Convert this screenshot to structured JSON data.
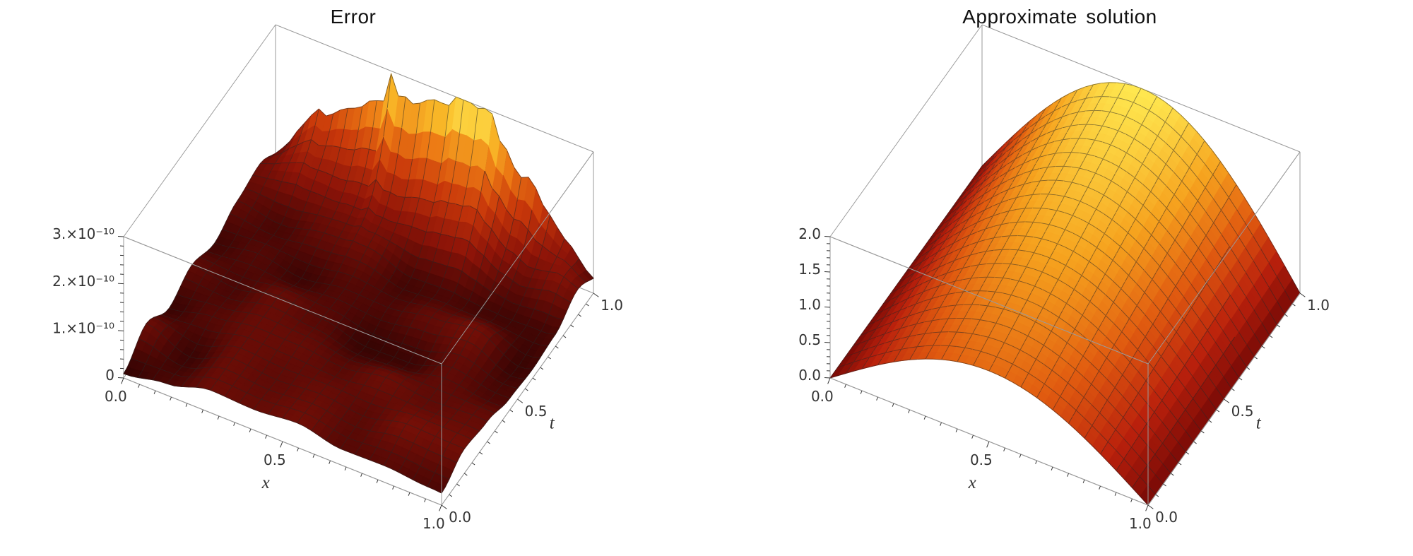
{
  "page": {
    "background": "#ffffff"
  },
  "chart_data": [
    {
      "type": "surface3d",
      "title": "Error",
      "xlabel": "x",
      "ylabel": "t",
      "x_range": [
        0,
        1
      ],
      "t_range": [
        0,
        1
      ],
      "z_range": [
        0,
        3e-10
      ],
      "x_ticks": [
        {
          "v": 0.0,
          "label": "0.0"
        },
        {
          "v": 0.5,
          "label": "0.5"
        },
        {
          "v": 1.0,
          "label": "1.0"
        }
      ],
      "t_ticks": [
        {
          "v": 0.0,
          "label": "0.0"
        },
        {
          "v": 0.5,
          "label": "0.5"
        },
        {
          "v": 1.0,
          "label": "1.0"
        }
      ],
      "z_ticks": [
        {
          "v": 0,
          "label": "0"
        },
        {
          "v": 1e-10,
          "label": "1.×10⁻¹⁰"
        },
        {
          "v": 2e-10,
          "label": "2.×10⁻¹⁰"
        },
        {
          "v": 3e-10,
          "label": "3.×10⁻¹⁰"
        }
      ],
      "x_minor_step": 0.05,
      "t_minor_step": 0.05,
      "z_minor_step": 2e-11,
      "grid": {
        "nx": 44,
        "nt": 40,
        "mesh_stride_x": 2,
        "mesh_stride_t": 2
      },
      "surface": {
        "z_formula": "zmax*(Math.pow(t,10)*Math.sin(Math.PI*x)*(0.70+0.30*stripe(x)) + 0.03 + 0.16*noise(x,t))",
        "description": "Pointwise absolute error of the numerical solution on [0,1]x[0,1]; near zero (noise floor about 1e-11) over most of the domain, rising in streaks to about 3e-10 along t=1 with a sin(pi x) profile."
      },
      "sample_points": {
        "note": "z rows indexed by t, columns by x (values estimated from plot)",
        "x": [
          0,
          0.25,
          0.5,
          0.75,
          1
        ],
        "t": [
          0,
          0.25,
          0.5,
          0.75,
          1
        ],
        "z_rows_by_t": [
          [
            0,
            1e-11,
            1.2e-11,
            1e-11,
            0
          ],
          [
            0,
            9e-12,
            1.1e-11,
            9e-12,
            0
          ],
          [
            0,
            1.2e-11,
            1.5e-11,
            1.2e-11,
            0
          ],
          [
            0,
            2e-11,
            2.6e-11,
            2e-11,
            0
          ],
          [
            0,
            2.1e-10,
            3e-10,
            2.1e-10,
            0
          ]
        ]
      },
      "colormap": [
        [
          0.0,
          [
            38,
            2,
            2
          ]
        ],
        [
          0.1,
          [
            82,
            8,
            5
          ]
        ],
        [
          0.25,
          [
            142,
            20,
            8
          ]
        ],
        [
          0.45,
          [
            200,
            55,
            10
          ]
        ],
        [
          0.65,
          [
            236,
            120,
            20
          ]
        ],
        [
          0.85,
          [
            250,
            190,
            42
          ]
        ],
        [
          1.0,
          [
            255,
            240,
            96
          ]
        ]
      ],
      "colors": {
        "box_edge": "#9a9a9a",
        "mesh": "rgba(40,40,40,0.55)",
        "tick": "#333333",
        "title": "#111111"
      }
    },
    {
      "type": "surface3d",
      "title": "Approximate solution",
      "xlabel": "x",
      "ylabel": "t",
      "x_range": [
        0,
        1
      ],
      "t_range": [
        0,
        1
      ],
      "z_range": [
        0,
        2
      ],
      "x_ticks": [
        {
          "v": 0.0,
          "label": "0.0"
        },
        {
          "v": 0.5,
          "label": "0.5"
        },
        {
          "v": 1.0,
          "label": "1.0"
        }
      ],
      "t_ticks": [
        {
          "v": 0.0,
          "label": "0.0"
        },
        {
          "v": 0.5,
          "label": "0.5"
        },
        {
          "v": 1.0,
          "label": "1.0"
        }
      ],
      "z_ticks": [
        {
          "v": 0.0,
          "label": "0.0"
        },
        {
          "v": 0.5,
          "label": "0.5"
        },
        {
          "v": 1.0,
          "label": "1.0"
        },
        {
          "v": 1.5,
          "label": "1.5"
        },
        {
          "v": 2.0,
          "label": "2.0"
        }
      ],
      "x_minor_step": 0.05,
      "t_minor_step": 0.05,
      "z_minor_step": 0.1,
      "grid": {
        "nx": 40,
        "nt": 40,
        "mesh_stride_x": 2,
        "mesh_stride_t": 2
      },
      "surface": {
        "z_formula": "(1+t)*Math.sin(Math.PI*x)",
        "description": "Smooth approximate solution u(x,t) = (1+t) sin(pi x): zero at x=0 and x=1, single arch in x whose peak grows from 1.0 at t=0 to 2.0 at t=1."
      },
      "sample_points": {
        "note": "z rows indexed by t, columns by x",
        "x": [
          0,
          0.25,
          0.5,
          0.75,
          1
        ],
        "t": [
          0,
          0.25,
          0.5,
          0.75,
          1
        ],
        "z_rows_by_t": [
          [
            0,
            0.7071,
            1.0,
            0.7071,
            0
          ],
          [
            0,
            0.8839,
            1.25,
            0.8839,
            0
          ],
          [
            0,
            1.0607,
            1.5,
            1.0607,
            0
          ],
          [
            0,
            1.2374,
            1.75,
            1.2374,
            0
          ],
          [
            0,
            1.4142,
            2.0,
            1.4142,
            0
          ]
        ]
      },
      "colormap": [
        [
          0.0,
          [
            120,
            10,
            6
          ]
        ],
        [
          0.2,
          [
            185,
            32,
            12
          ]
        ],
        [
          0.45,
          [
            225,
            92,
            16
          ]
        ],
        [
          0.7,
          [
            246,
            162,
            30
          ]
        ],
        [
          1.0,
          [
            255,
            233,
            80
          ]
        ]
      ],
      "colors": {
        "box_edge": "#9a9a9a",
        "mesh": "rgba(40,40,40,0.55)",
        "tick": "#333333",
        "title": "#111111"
      }
    }
  ]
}
